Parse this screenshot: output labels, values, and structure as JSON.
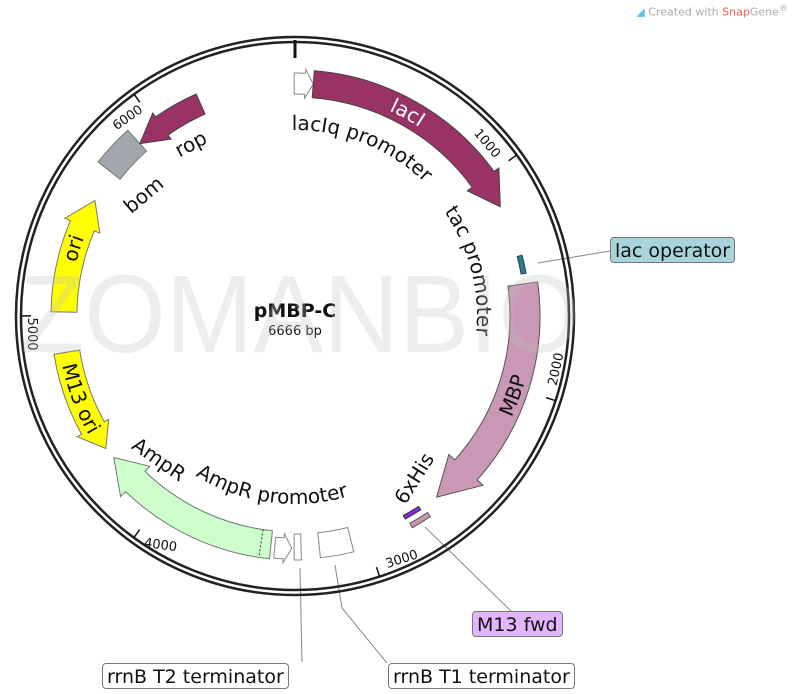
{
  "credit": {
    "prefix": "Created with ",
    "brand_a": "Snap",
    "brand_b": "Gene",
    "mark": "®",
    "icon": "snapgene-logo-icon"
  },
  "plasmid": {
    "name": "pMBP-C",
    "size": "6666 bp"
  },
  "watermark": "ZOMANBIO",
  "ticks": [
    "1000",
    "2000",
    "3000",
    "4000",
    "5000",
    "6000"
  ],
  "features": {
    "lacIq_promoter": {
      "label": "lacIq promoter",
      "color": "#ffffff"
    },
    "lacI": {
      "label": "lacI",
      "color": "#993366"
    },
    "tac_promoter": {
      "label": "tac promoter"
    },
    "lac_operator": {
      "label": "lac operator",
      "color": "#2e7b8c",
      "callout_color": "#a9d4dc"
    },
    "MBP": {
      "label": "MBP",
      "color": "#c898b6"
    },
    "sixHis": {
      "label": "6xHis",
      "color": "#c898b6"
    },
    "M13_fwd": {
      "label": "M13 fwd",
      "color": "#8a2be2",
      "callout_color": "#e3b5fb"
    },
    "rrnB_T1": {
      "label": "rrnB T1 terminator",
      "color": "#ffffff"
    },
    "rrnB_T2": {
      "label": "rrnB T2 terminator",
      "color": "#ffffff"
    },
    "AmpR_promoter": {
      "label": "AmpR promoter",
      "color": "#ffffff"
    },
    "AmpR": {
      "label": "AmpR",
      "color": "#ccffcc"
    },
    "M13_ori": {
      "label": "M13 ori",
      "color": "#ffff00"
    },
    "ori": {
      "label": "ori",
      "color": "#ffff00"
    },
    "bom": {
      "label": "bom",
      "color": "#a3a7ad"
    },
    "rop": {
      "label": "rop",
      "color": "#993366"
    }
  }
}
